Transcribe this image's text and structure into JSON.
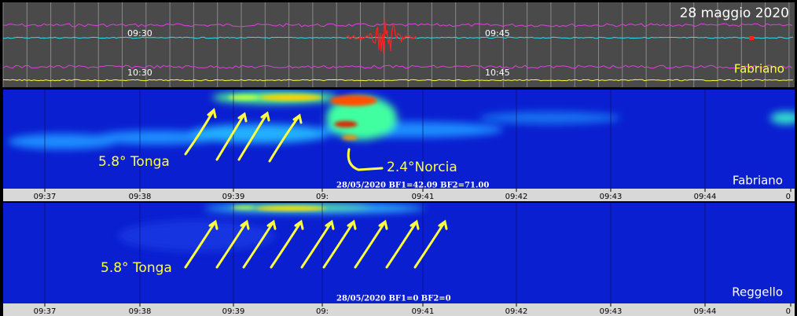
{
  "header": {
    "date": "28 maggio 2020",
    "station": "Fabriano"
  },
  "seismogram": {
    "trace1_times": [
      "09:30",
      "09:45"
    ],
    "trace2_times": [
      "10:30",
      "10:45"
    ]
  },
  "panels": [
    {
      "station": "Fabriano",
      "annotations": [
        "5.8° Tonga",
        "2.4°Norcia"
      ],
      "caption": "28/05/2020 BF1=42.09 BF2=71.00",
      "time_labels": [
        "09:37",
        "09:38",
        "09:39",
        "09:",
        "09:41",
        "09:42",
        "09:43",
        "09:44",
        "0"
      ]
    },
    {
      "station": "Reggello",
      "annotations": [
        "5.8° Tonga"
      ],
      "caption": "28/05/2020 BF1=0 BF2=0",
      "time_labels": [
        "09:37",
        "09:38",
        "09:39",
        "09:",
        "09:41",
        "09:42",
        "09:43",
        "09:44",
        "0"
      ]
    }
  ]
}
